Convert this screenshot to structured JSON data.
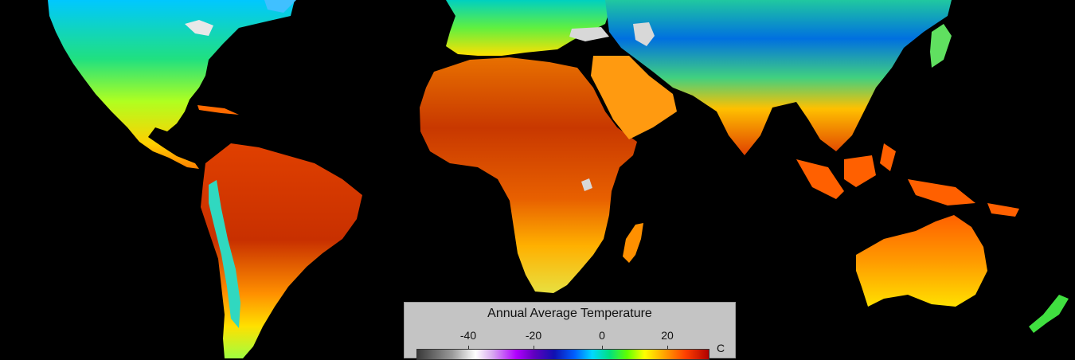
{
  "map": {
    "background": "#000000",
    "legend": {
      "title": "Annual Average Temperature",
      "unit": "C",
      "ticks": [
        "-40",
        "-20",
        "0",
        "20"
      ],
      "scale_min": -50,
      "scale_max": 35,
      "colors": [
        "#3a3a3a",
        "#ffffff",
        "#b000ff",
        "#1010b0",
        "#00d8ff",
        "#00e080",
        "#ffff00",
        "#ff4000",
        "#b00000"
      ]
    }
  }
}
